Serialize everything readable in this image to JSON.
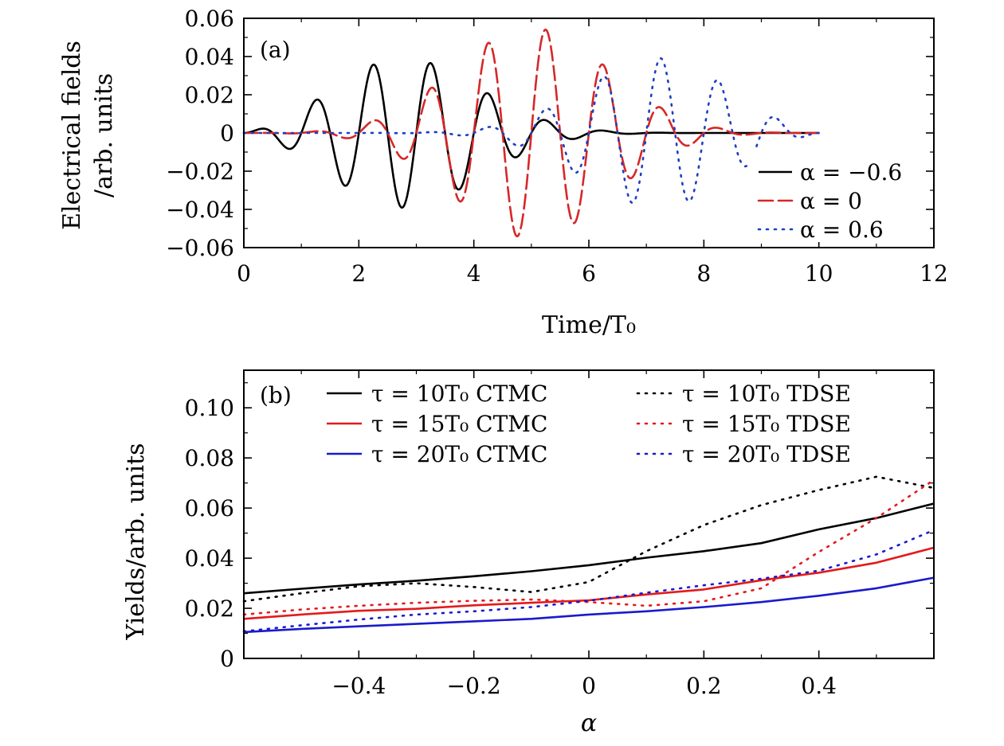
{
  "chart_data": [
    {
      "type": "line",
      "panel_label": "(a)",
      "xlabel": "Time/T₀",
      "ylabel_line1": "Electrical fields",
      "ylabel_line2": "/arb. units",
      "xlim": [
        0,
        12
      ],
      "ylim": [
        -0.06,
        0.06
      ],
      "xticks": [
        0,
        2,
        4,
        6,
        8,
        10,
        12
      ],
      "xtick_labels": [
        "0",
        "2",
        "4",
        "6",
        "8",
        "10",
        "12"
      ],
      "yticks": [
        -0.06,
        -0.04,
        -0.02,
        0,
        0.02,
        0.04,
        0.06
      ],
      "ytick_labels": [
        "−0.06",
        "−0.04",
        "−0.02",
        "0",
        "0.02",
        "0.04",
        "0.06"
      ],
      "grid": false,
      "legend_position": "bottom-right",
      "series": [
        {
          "name": "α = −0.6",
          "style": "solid",
          "color": "#000000",
          "alpha": -0.6,
          "amplitude": 0.055,
          "peak_time": 2.2
        },
        {
          "name": "α = 0",
          "style": "dashed",
          "color": "#d62728",
          "alpha": 0,
          "amplitude": 0.055,
          "peak_time": 5.0
        },
        {
          "name": "α = 0.6",
          "style": "dotted",
          "color": "#1f3fbf",
          "alpha": 0.6,
          "amplitude": 0.055,
          "peak_time": 7.8
        }
      ]
    },
    {
      "type": "line",
      "panel_label": "(b)",
      "xlabel": "α",
      "ylabel": "Yields/arb. units",
      "xlim": [
        -0.6,
        0.6
      ],
      "ylim": [
        0,
        0.115
      ],
      "xticks": [
        -0.4,
        -0.2,
        0,
        0.2,
        0.4
      ],
      "xtick_labels": [
        "−0.4",
        "−0.2",
        "0",
        "0.2",
        "0.4"
      ],
      "yticks": [
        0,
        0.02,
        0.04,
        0.06,
        0.08,
        0.1
      ],
      "ytick_labels": [
        "0",
        "0.02",
        "0.04",
        "0.06",
        "0.08",
        "0.10"
      ],
      "grid": false,
      "legend_position": "top",
      "x": [
        -0.6,
        -0.5,
        -0.4,
        -0.3,
        -0.2,
        -0.1,
        0,
        0.1,
        0.2,
        0.3,
        0.4,
        0.5,
        0.6
      ],
      "series": [
        {
          "name": "τ = 10T₀ CTMC",
          "style": "solid",
          "color": "#000000",
          "values": [
            0.026,
            0.0278,
            0.0295,
            0.031,
            0.0328,
            0.0348,
            0.0372,
            0.0402,
            0.0428,
            0.046,
            0.0515,
            0.056,
            0.0618
          ]
        },
        {
          "name": "τ = 15T₀ CTMC",
          "style": "solid",
          "color": "#e31a1c",
          "values": [
            0.0158,
            0.0175,
            0.019,
            0.0198,
            0.0212,
            0.0222,
            0.0232,
            0.0255,
            0.0275,
            0.0312,
            0.0342,
            0.0382,
            0.0442
          ]
        },
        {
          "name": "τ = 20T₀ CTMC",
          "style": "solid",
          "color": "#1a1acc",
          "values": [
            0.0105,
            0.0118,
            0.0128,
            0.0138,
            0.0148,
            0.0158,
            0.0175,
            0.0188,
            0.0205,
            0.0225,
            0.025,
            0.028,
            0.0322
          ]
        },
        {
          "name": "τ = 10T₀ TDSE",
          "style": "dotted",
          "color": "#000000",
          "values": [
            0.0228,
            0.026,
            0.0288,
            0.03,
            0.0285,
            0.0265,
            0.0305,
            0.0428,
            0.0532,
            0.0612,
            0.0672,
            0.0725,
            0.068
          ]
        },
        {
          "name": "τ = 15T₀ TDSE",
          "style": "dotted",
          "color": "#e31a1c",
          "values": [
            0.0175,
            0.0195,
            0.021,
            0.0222,
            0.023,
            0.0235,
            0.0225,
            0.021,
            0.0228,
            0.028,
            0.0425,
            0.056,
            0.0712
          ]
        },
        {
          "name": "τ = 20T₀ TDSE",
          "style": "dotted",
          "color": "#1a1acc",
          "values": [
            0.0108,
            0.0132,
            0.0155,
            0.0175,
            0.0188,
            0.0205,
            0.023,
            0.0262,
            0.0292,
            0.0318,
            0.035,
            0.0415,
            0.0512
          ]
        }
      ]
    }
  ]
}
